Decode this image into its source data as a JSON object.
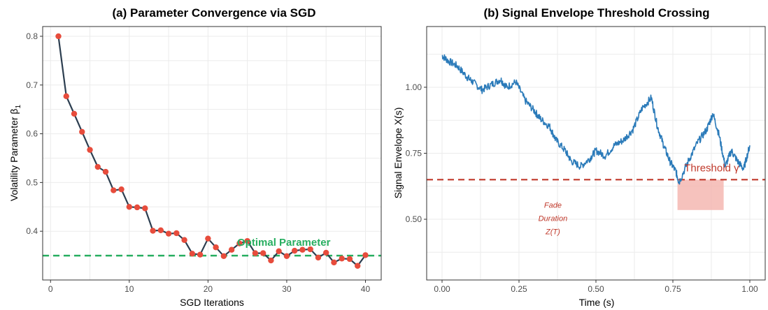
{
  "chart_data": [
    {
      "type": "line",
      "title": "(a) Parameter Convergence via SGD",
      "xlabel": "SGD Iterations",
      "ylabel": "Volatility Parameter β",
      "ylabel_sub": "1",
      "xlim": [
        -1,
        42
      ],
      "ylim": [
        0.3,
        0.82
      ],
      "xticks": [
        0,
        10,
        20,
        30,
        40
      ],
      "yticks": [
        0.4,
        0.5,
        0.6,
        0.7,
        0.8
      ],
      "grid": true,
      "colors": {
        "line": "#2c3e50",
        "points": "#e74c3c",
        "reference": "#27ae60"
      },
      "x": [
        1,
        2,
        3,
        4,
        5,
        6,
        7,
        8,
        9,
        10,
        11,
        12,
        13,
        14,
        15,
        16,
        17,
        18,
        19,
        20,
        21,
        22,
        23,
        24,
        25,
        26,
        27,
        28,
        29,
        30,
        31,
        32,
        33,
        34,
        35,
        36,
        37,
        38,
        39,
        40
      ],
      "series": [
        {
          "values": [
            0.8,
            0.677,
            0.641,
            0.604,
            0.567,
            0.532,
            0.522,
            0.484,
            0.486,
            0.45,
            0.449,
            0.447,
            0.401,
            0.402,
            0.395,
            0.396,
            0.382,
            0.354,
            0.352,
            0.385,
            0.367,
            0.349,
            0.362,
            0.375,
            0.38,
            0.355,
            0.355,
            0.34,
            0.359,
            0.349,
            0.36,
            0.362,
            0.363,
            0.346,
            0.356,
            0.336,
            0.344,
            0.343,
            0.329,
            0.351
          ]
        }
      ],
      "reference_line": {
        "y": 0.35,
        "label": "Optimal Parameter"
      }
    },
    {
      "type": "line",
      "title": "(b) Signal Envelope Threshold Crossing",
      "xlabel": "Time (s)",
      "ylabel": "Signal Envelope X(s)",
      "xlim": [
        -0.05,
        1.05
      ],
      "ylim": [
        0.27,
        1.23
      ],
      "xticks": [
        0.0,
        0.25,
        0.5,
        0.75,
        1.0
      ],
      "xtick_labels": [
        "0.00",
        "0.25",
        "0.50",
        "0.75",
        "1.00"
      ],
      "yticks": [
        0.5,
        0.75,
        1.0
      ],
      "ytick_labels": [
        "0.50",
        "0.75",
        "1.00"
      ],
      "grid": true,
      "colors": {
        "line": "#2a7ab9",
        "threshold": "#c0392b",
        "shade": "#f5b7b1",
        "annotation": "#c0392b"
      },
      "x": [
        0.0,
        0.02,
        0.05,
        0.08,
        0.1,
        0.13,
        0.16,
        0.19,
        0.21,
        0.24,
        0.27,
        0.3,
        0.32,
        0.35,
        0.37,
        0.4,
        0.42,
        0.45,
        0.48,
        0.5,
        0.53,
        0.56,
        0.59,
        0.62,
        0.65,
        0.68,
        0.7,
        0.72,
        0.74,
        0.76,
        0.77,
        0.8,
        0.83,
        0.86,
        0.88,
        0.9,
        0.92,
        0.94,
        0.96,
        0.98,
        1.0
      ],
      "series": [
        {
          "values": [
            1.12,
            1.1,
            1.08,
            1.04,
            1.02,
            0.99,
            1.01,
            1.03,
            1.0,
            1.02,
            0.95,
            0.91,
            0.88,
            0.85,
            0.8,
            0.76,
            0.72,
            0.7,
            0.73,
            0.76,
            0.74,
            0.78,
            0.8,
            0.84,
            0.92,
            0.96,
            0.85,
            0.78,
            0.72,
            0.68,
            0.64,
            0.72,
            0.79,
            0.84,
            0.9,
            0.82,
            0.7,
            0.76,
            0.72,
            0.69,
            0.78
          ]
        }
      ],
      "threshold": {
        "y": 0.65,
        "label": "Threshold γ"
      },
      "shaded_region": {
        "x0": 0.765,
        "x1": 0.915,
        "y0": 0.535,
        "y1": 0.65
      },
      "annotation": {
        "lines": [
          "Fade",
          "Duration",
          "Z(T)"
        ],
        "x": 0.36,
        "y": 0.485
      }
    }
  ]
}
